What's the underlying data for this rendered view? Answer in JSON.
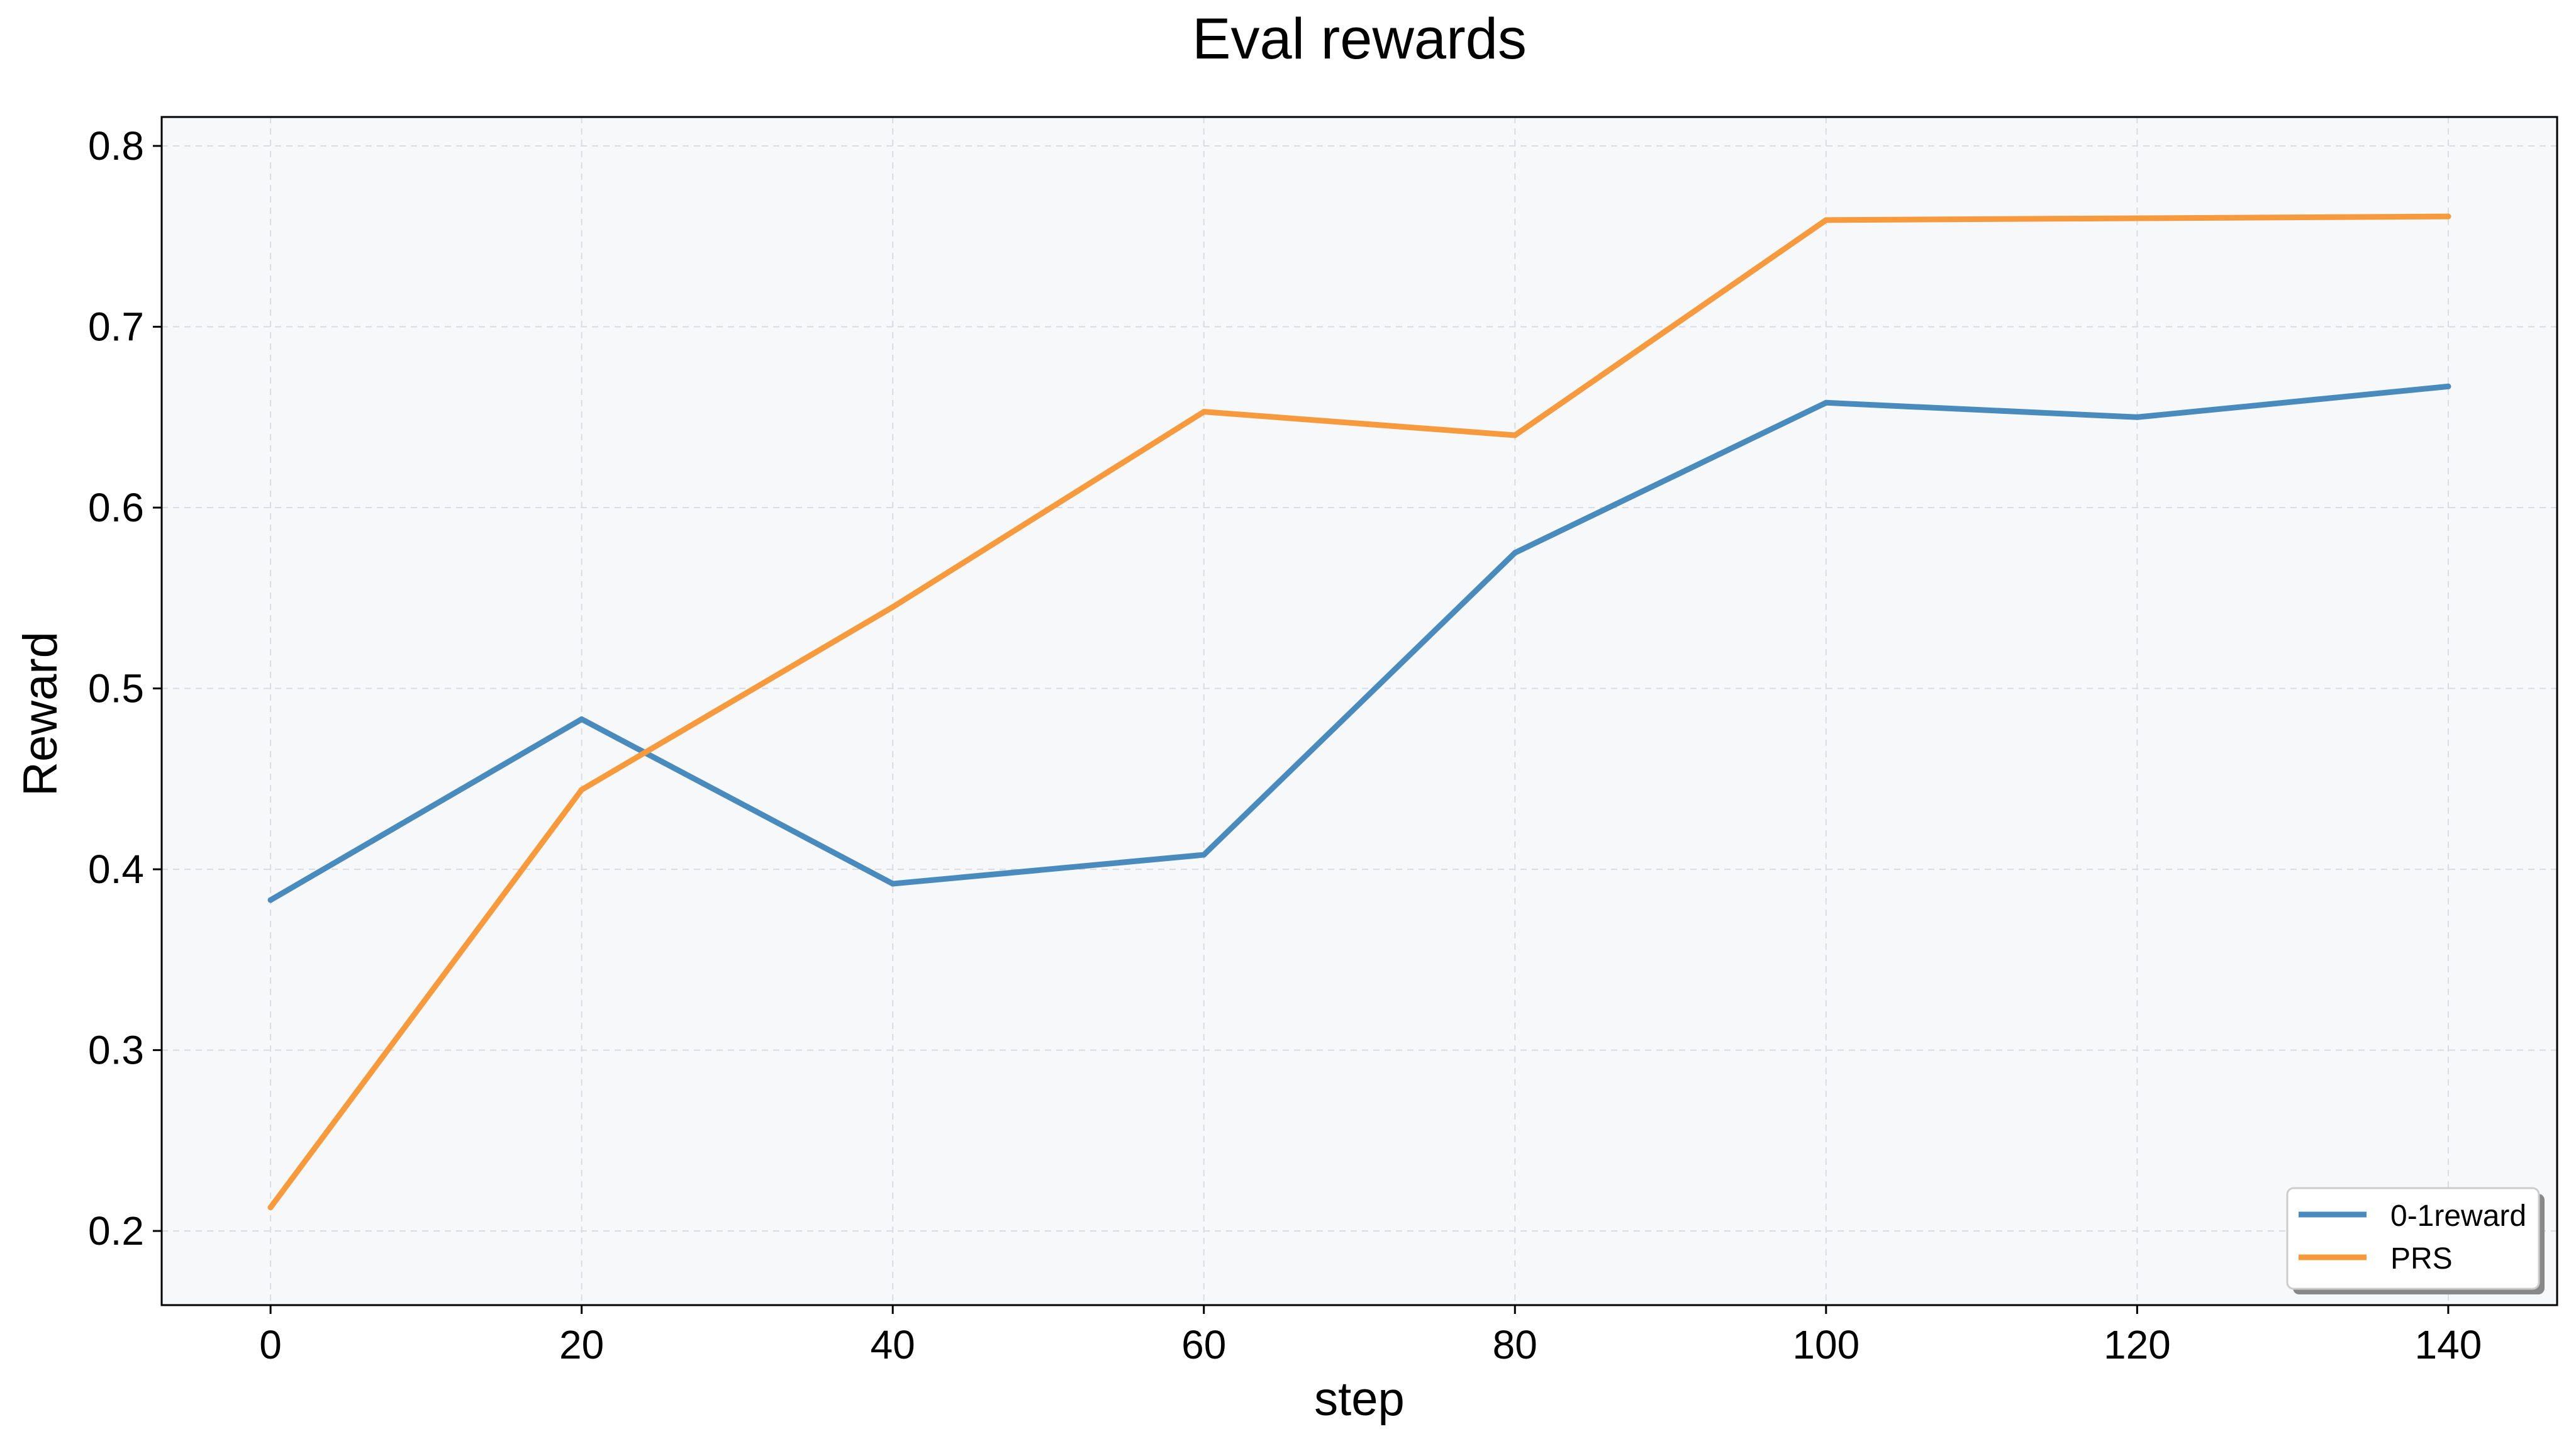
{
  "chart_data": {
    "type": "line",
    "title": "Eval rewards",
    "xlabel": "step",
    "ylabel": "Reward",
    "x": [
      0,
      20,
      40,
      60,
      80,
      100,
      120,
      140
    ],
    "xlim": [
      -7,
      147
    ],
    "ylim": [
      0.159,
      0.816
    ],
    "xticks": [
      0,
      20,
      40,
      60,
      80,
      100,
      120,
      140
    ],
    "yticks": [
      0.2,
      0.3,
      0.4,
      0.5,
      0.6,
      0.7,
      0.8
    ],
    "ytick_labels": [
      "0.2",
      "0.3",
      "0.4",
      "0.5",
      "0.6",
      "0.7",
      "0.8"
    ],
    "grid": true,
    "legend_position": "bottom-right",
    "series": [
      {
        "name": "0-1reward",
        "color": "#4A8BBE",
        "values": [
          0.383,
          0.483,
          0.392,
          0.408,
          0.575,
          0.658,
          0.65,
          0.667
        ]
      },
      {
        "name": "PRS",
        "color": "#F79A3E",
        "values": [
          0.213,
          0.444,
          0.545,
          0.653,
          0.64,
          0.759,
          0.76,
          0.761
        ]
      }
    ],
    "plot_background": "#F7F8FA"
  }
}
